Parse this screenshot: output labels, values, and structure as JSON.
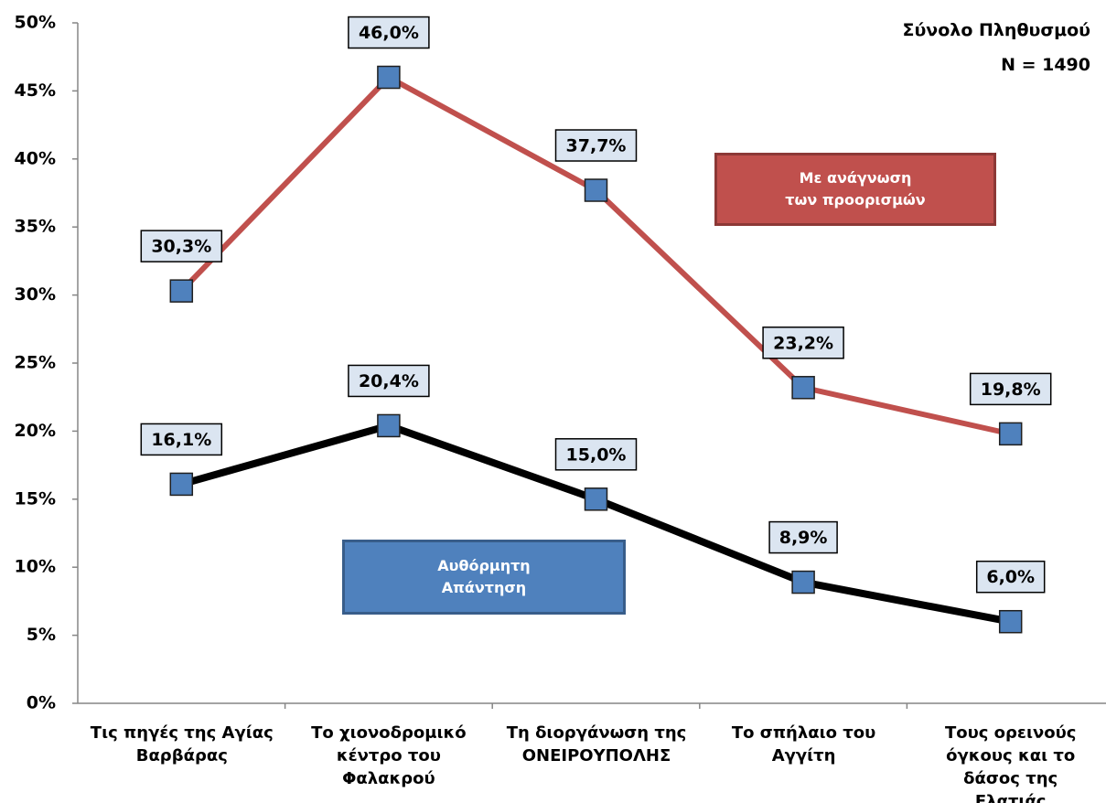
{
  "chart_data": {
    "type": "line",
    "annotations": [
      "Σύνολο Πληθυσμού",
      "N = 1490"
    ],
    "categories": [
      "Τις πηγές της Αγίας Βαρβάρας",
      "Το χιονοδρομικό κέντρο του Φαλακρού",
      "Τη διοργάνωση της ΟΝΕΙΡΟΥΠΟΛΗΣ",
      "Το σπήλαιο του Αγγίτη",
      "Τους ορεινούς όγκους και το δάσος της Ελατιάς"
    ],
    "series": [
      {
        "name": "Με ανάγνωση των προορισμών",
        "color": "#c0504d",
        "values": [
          30.3,
          46.0,
          37.7,
          23.2,
          19.8
        ],
        "value_labels": [
          "30,3%",
          "46,0%",
          "37,7%",
          "23,2%",
          "19,8%"
        ]
      },
      {
        "name": "Αυθόρμητη Απάντηση",
        "color": "#000000",
        "values": [
          16.1,
          20.4,
          15.0,
          8.9,
          6.0
        ],
        "value_labels": [
          "16,1%",
          "20,4%",
          "15,0%",
          "8,9%",
          "6,0%"
        ]
      }
    ],
    "marker_color": "#4f81bd",
    "ylim": [
      0,
      50
    ],
    "yticks": [
      {
        "value": 0,
        "label": "0%"
      },
      {
        "value": 5,
        "label": "5%"
      },
      {
        "value": 10,
        "label": "10%"
      },
      {
        "value": 15,
        "label": "15%"
      },
      {
        "value": 20,
        "label": "20%"
      },
      {
        "value": 25,
        "label": "25%"
      },
      {
        "value": 30,
        "label": "30%"
      },
      {
        "value": 35,
        "label": "35%"
      },
      {
        "value": 40,
        "label": "40%"
      },
      {
        "value": 45,
        "label": "45%"
      },
      {
        "value": 50,
        "label": "50%"
      }
    ],
    "grid": false
  }
}
